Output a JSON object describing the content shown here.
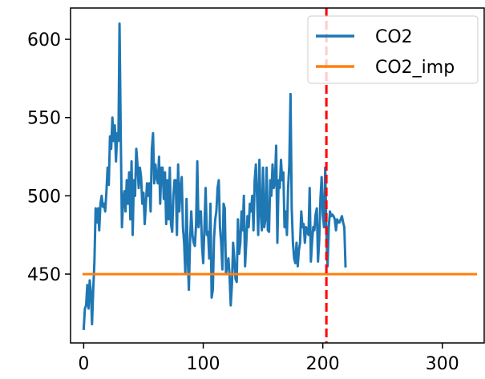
{
  "chart_data": {
    "type": "line",
    "title": "",
    "xlabel": "",
    "ylabel": "",
    "xlim": [
      -11,
      335
    ],
    "ylim": [
      406,
      620
    ],
    "x_ticks": [
      0,
      100,
      200,
      300
    ],
    "y_ticks": [
      450,
      500,
      550,
      600
    ],
    "x_tick_labels": [
      "0",
      "100",
      "200",
      "300"
    ],
    "y_tick_labels": [
      "450",
      "500",
      "550",
      "600"
    ],
    "grid": false,
    "legend_position": "top-right",
    "vertical_line": {
      "x": 203,
      "style": "dashed",
      "color": "#ff0000"
    },
    "series": [
      {
        "name": "CO2",
        "color": "#1f77b4",
        "x": [
          0,
          1,
          2,
          3,
          4,
          5,
          6,
          7,
          8,
          9,
          10,
          11,
          12,
          13,
          14,
          15,
          16,
          17,
          18,
          19,
          20,
          21,
          22,
          23,
          24,
          25,
          26,
          27,
          28,
          29,
          30,
          31,
          32,
          33,
          34,
          35,
          36,
          37,
          38,
          39,
          40,
          41,
          42,
          43,
          44,
          45,
          46,
          47,
          48,
          49,
          50,
          51,
          52,
          53,
          54,
          55,
          56,
          57,
          58,
          59,
          60,
          61,
          62,
          63,
          64,
          65,
          66,
          67,
          68,
          69,
          70,
          71,
          72,
          73,
          74,
          75,
          76,
          77,
          78,
          79,
          80,
          81,
          82,
          83,
          84,
          85,
          86,
          87,
          88,
          89,
          90,
          91,
          92,
          93,
          94,
          95,
          96,
          97,
          98,
          99,
          100,
          101,
          102,
          103,
          104,
          105,
          106,
          107,
          108,
          109,
          110,
          111,
          112,
          113,
          114,
          115,
          116,
          117,
          118,
          119,
          120,
          121,
          122,
          123,
          124,
          125,
          126,
          127,
          128,
          129,
          130,
          131,
          132,
          133,
          134,
          135,
          136,
          137,
          138,
          139,
          140,
          141,
          142,
          143,
          144,
          145,
          146,
          147,
          148,
          149,
          150,
          151,
          152,
          153,
          154,
          155,
          156,
          157,
          158,
          159,
          160,
          161,
          162,
          163,
          164,
          165,
          166,
          167,
          168,
          169,
          170,
          171,
          172,
          173,
          174,
          175,
          176,
          177,
          178,
          179,
          180,
          181,
          182,
          183,
          184,
          185,
          186,
          187,
          188,
          189,
          190,
          191,
          192,
          193,
          194,
          195,
          196,
          197,
          198,
          199,
          200,
          201,
          202,
          203,
          204,
          205,
          206,
          207,
          208,
          209,
          210,
          211,
          212,
          213,
          214,
          215,
          216,
          217,
          218,
          219
        ],
        "values": [
          415,
          428,
          430,
          443,
          428,
          446,
          438,
          418,
          440,
          458,
          492,
          483,
          492,
          478,
          495,
          500,
          493,
          495,
          490,
          502,
          518,
          507,
          538,
          530,
          550,
          535,
          545,
          522,
          540,
          535,
          610,
          540,
          480,
          497,
          503,
          490,
          510,
          495,
          515,
          485,
          522,
          475,
          510,
          500,
          530,
          520,
          505,
          518,
          512,
          495,
          502,
          482,
          495,
          508,
          500,
          508,
          490,
          530,
          540,
          508,
          520,
          512,
          508,
          525,
          495,
          518,
          518,
          498,
          515,
          482,
          510,
          485,
          518,
          482,
          477,
          500,
          510,
          510,
          475,
          520,
          490,
          505,
          512,
          480,
          470,
          450,
          498,
          460,
          440,
          472,
          490,
          475,
          470,
          468,
          482,
          522,
          480,
          490,
          490,
          468,
          457,
          480,
          505,
          475,
          477,
          460,
          495,
          435,
          440,
          473,
          485,
          490,
          505,
          510,
          480,
          470,
          453,
          495,
          492,
          450,
          455,
          460,
          450,
          430,
          443,
          470,
          460,
          447,
          445,
          485,
          463,
          470,
          490,
          478,
          500,
          455,
          470,
          487,
          480,
          495,
          490,
          500,
          478,
          510,
          520,
          500,
          475,
          523,
          490,
          478,
          518,
          480,
          485,
          518,
          478,
          477,
          510,
          500,
          520,
          505,
          509,
          532,
          470,
          510,
          505,
          523,
          510,
          515,
          480,
          490,
          475,
          505,
          520,
          565,
          492,
          470,
          460,
          457,
          470,
          455,
          465,
          470,
          490,
          480,
          482,
          470,
          480,
          477,
          475,
          505,
          458,
          470,
          480,
          478,
          488,
          492,
          458,
          472,
          498,
          512,
          488,
          480,
          518,
          477,
          455,
          480,
          490,
          487,
          488,
          487,
          485,
          478,
          485,
          483,
          483,
          485,
          487,
          483,
          480,
          455
        ]
      },
      {
        "name": "CO2_imp",
        "color": "#ff7f0e",
        "x": [
          0,
          328
        ],
        "values": [
          450,
          450
        ]
      }
    ]
  }
}
